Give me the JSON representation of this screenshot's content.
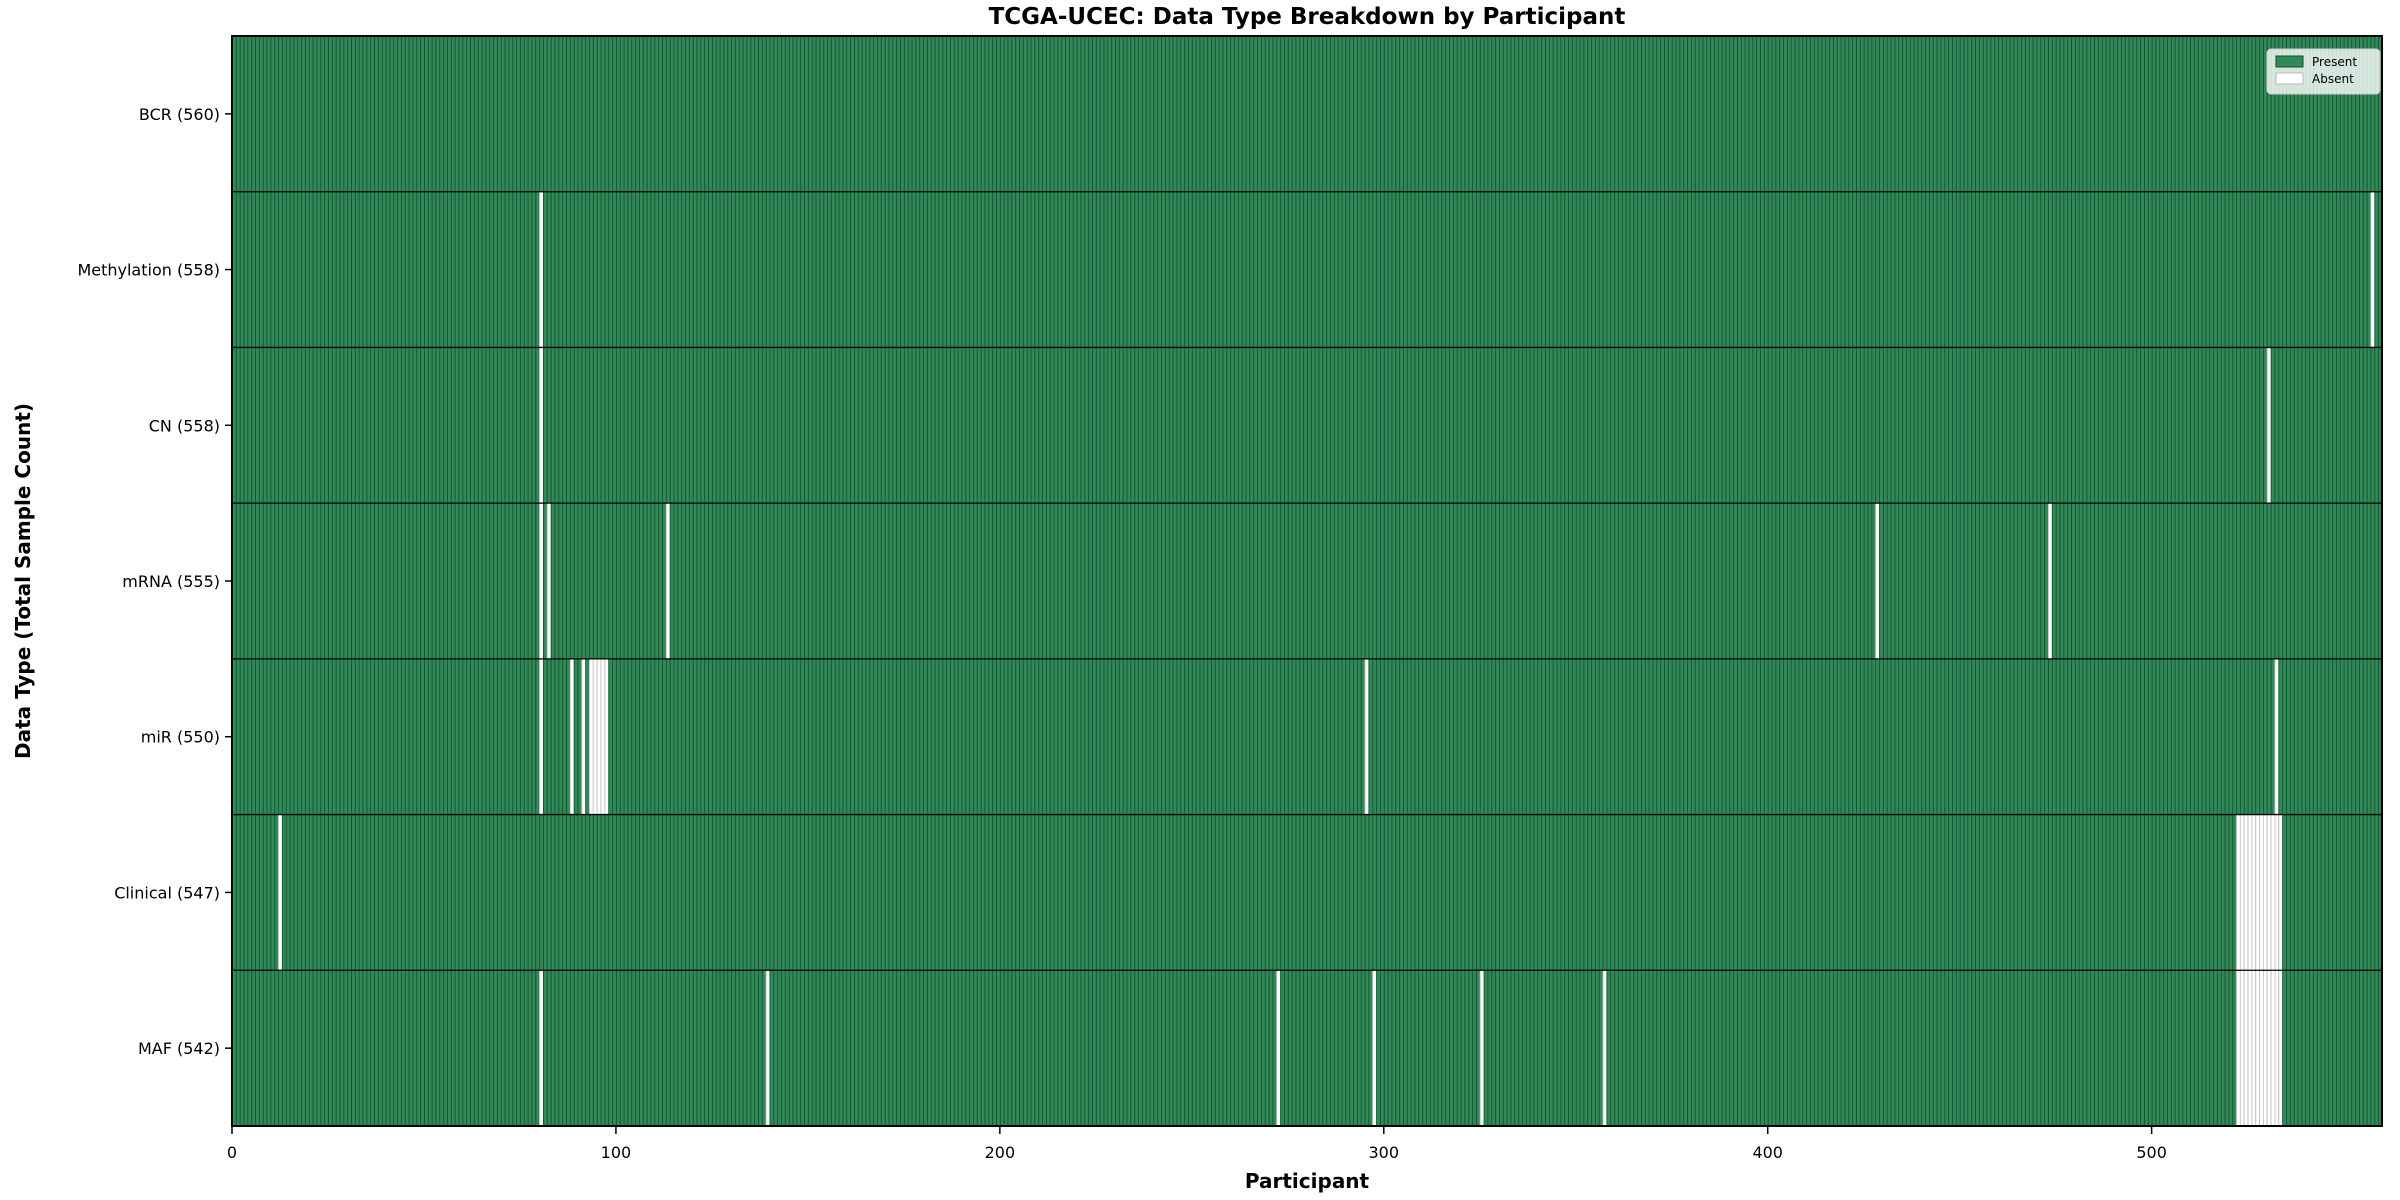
{
  "chart_data": {
    "type": "heatmap",
    "title": "TCGA-UCEC: Data Type Breakdown by Participant",
    "xlabel": "Participant",
    "ylabel": "Data Type (Total Sample Count)",
    "xlim": [
      0,
      560
    ],
    "n_participants": 560,
    "x_ticks": [
      0,
      100,
      200,
      300,
      400,
      500
    ],
    "grid": false,
    "legend": {
      "position": "upper right",
      "entries": [
        {
          "label": "Present",
          "color": "#2e8b57"
        },
        {
          "label": "Absent",
          "color": "#ffffff"
        }
      ]
    },
    "colors": {
      "present_fill": "#2e8b57",
      "present_edge": "#1b4c32",
      "absent_fill": "#ffffff",
      "absent_edge": "#c9c9c9",
      "separator": "#000000",
      "spine": "#000000",
      "legend_bg": "rgba(255,255,255,0.8)",
      "legend_border": "#cccccc"
    },
    "rows": [
      {
        "label": "BCR (560)",
        "name": "BCR",
        "total": 560,
        "absent_participants": []
      },
      {
        "label": "Methylation (558)",
        "name": "Methylation",
        "total": 558,
        "absent_participants": [
          80,
          557
        ]
      },
      {
        "label": "CN (558)",
        "name": "CN",
        "total": 558,
        "absent_participants": [
          80,
          530
        ]
      },
      {
        "label": "mRNA (555)",
        "name": "mRNA",
        "total": 555,
        "absent_participants": [
          80,
          82,
          113,
          428,
          473
        ]
      },
      {
        "label": "miR (550)",
        "name": "miR",
        "total": 550,
        "absent_participants": [
          80,
          88,
          91,
          93,
          94,
          95,
          96,
          97,
          295,
          532
        ]
      },
      {
        "label": "Clinical (547)",
        "name": "Clinical",
        "total": 547,
        "absent_participants": [
          12,
          522,
          523,
          524,
          525,
          526,
          527,
          528,
          529,
          530,
          531,
          532,
          533
        ]
      },
      {
        "label": "MAF (542)",
        "name": "MAF",
        "total": 542,
        "absent_participants": [
          80,
          139,
          272,
          297,
          325,
          357,
          522,
          523,
          524,
          525,
          526,
          527,
          528,
          529,
          530,
          531,
          532,
          533
        ]
      }
    ]
  }
}
